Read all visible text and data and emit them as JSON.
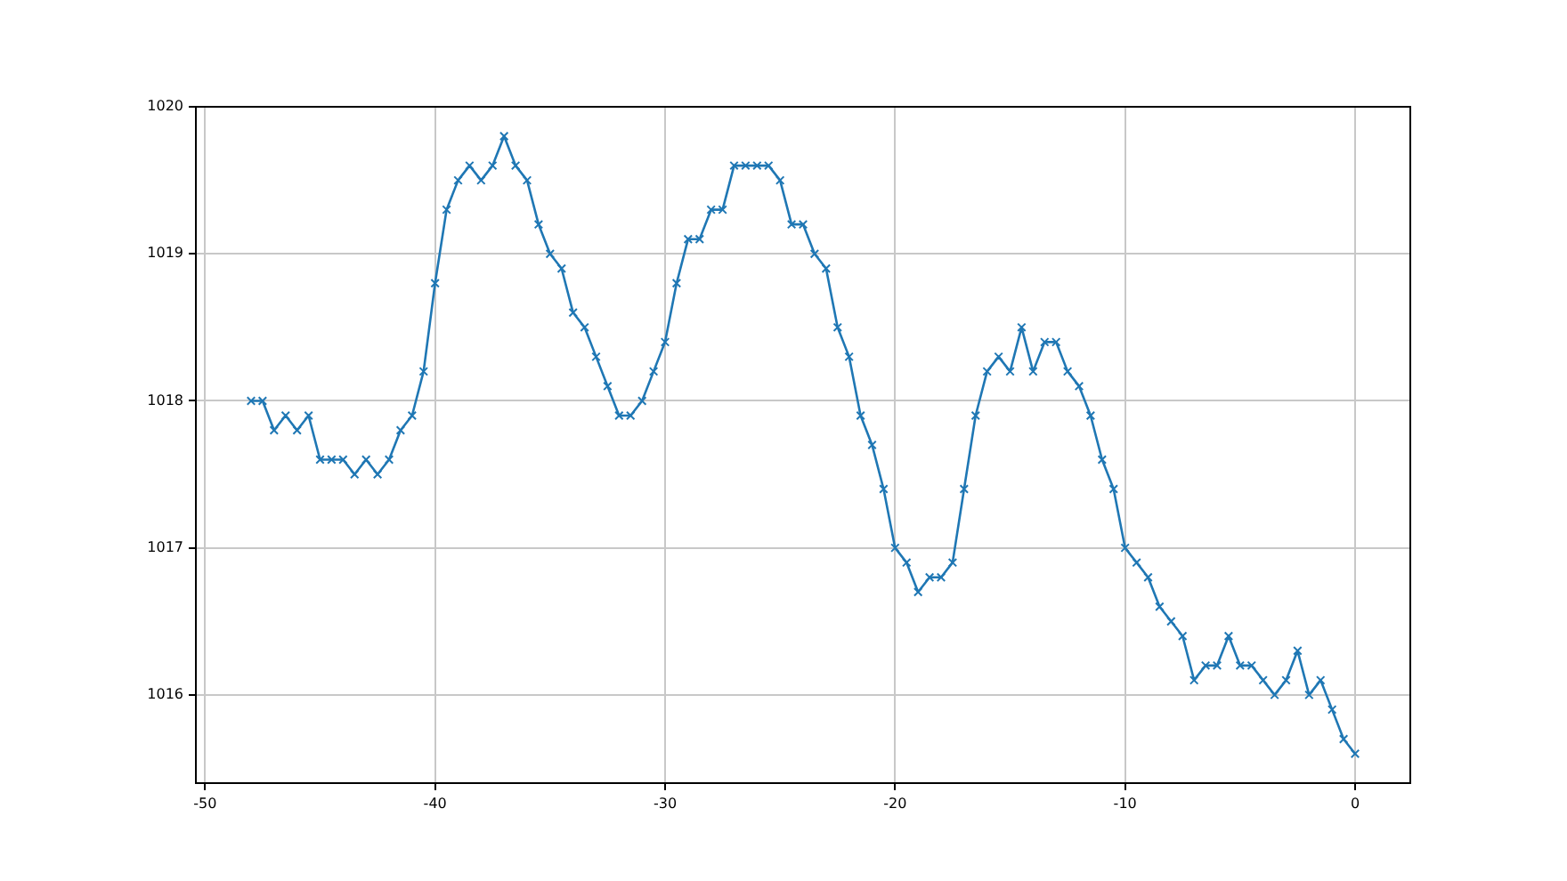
{
  "chart_data": {
    "type": "line",
    "x": [
      -48,
      -47.5,
      -47,
      -46.5,
      -46,
      -45.5,
      -45,
      -44.5,
      -44,
      -43.5,
      -43,
      -42.5,
      -42,
      -41.5,
      -41,
      -40.5,
      -40,
      -39.5,
      -39,
      -38.5,
      -38,
      -37.5,
      -37,
      -36.5,
      -36,
      -35.5,
      -35,
      -34.5,
      -34,
      -33.5,
      -33,
      -32.5,
      -32,
      -31.5,
      -31,
      -30.5,
      -30,
      -29.5,
      -29,
      -28.5,
      -28,
      -27.5,
      -27,
      -26.5,
      -26,
      -25.5,
      -25,
      -24.5,
      -24,
      -23.5,
      -23,
      -22.5,
      -22,
      -21.5,
      -21,
      -20.5,
      -20,
      -19.5,
      -19,
      -18.5,
      -18,
      -17.5,
      -17,
      -16.5,
      -16,
      -15.5,
      -15,
      -14.5,
      -14,
      -13.5,
      -13,
      -12.5,
      -12,
      -11.5,
      -11,
      -10.5,
      -10,
      -9.5,
      -9,
      -8.5,
      -8,
      -7.5,
      -7,
      -6.5,
      -6,
      -5.5,
      -5,
      -4.5,
      -4,
      -3.5,
      -3,
      -2.5,
      -2,
      -1.5,
      -1,
      -0.5,
      0
    ],
    "series": [
      {
        "color": "#1f77b4",
        "values": [
          1018.0,
          1018.0,
          1017.8,
          1017.9,
          1017.8,
          1017.9,
          1017.6,
          1017.6,
          1017.6,
          1017.5,
          1017.6,
          1017.5,
          1017.6,
          1017.8,
          1017.9,
          1018.2,
          1018.8,
          1019.3,
          1019.5,
          1019.6,
          1019.5,
          1019.6,
          1019.8,
          1019.6,
          1019.5,
          1019.2,
          1019.0,
          1018.9,
          1018.6,
          1018.5,
          1018.3,
          1018.1,
          1017.9,
          1017.9,
          1018.0,
          1018.2,
          1018.4,
          1018.8,
          1019.1,
          1019.1,
          1019.3,
          1019.3,
          1019.6,
          1019.6,
          1019.6,
          1019.6,
          1019.5,
          1019.2,
          1019.2,
          1019.0,
          1018.9,
          1018.5,
          1018.3,
          1017.9,
          1017.7,
          1017.4,
          1017.0,
          1016.9,
          1016.7,
          1016.8,
          1016.8,
          1016.9,
          1017.4,
          1017.9,
          1018.2,
          1018.3,
          1018.2,
          1018.5,
          1018.2,
          1018.4,
          1018.4,
          1018.2,
          1018.1,
          1017.9,
          1017.6,
          1017.4,
          1017.0,
          1016.9,
          1016.8,
          1016.6,
          1016.5,
          1016.4,
          1016.1,
          1016.2,
          1016.2,
          1016.4,
          1016.2,
          1016.2,
          1016.1,
          1016.0,
          1016.1,
          1016.3,
          1016.0,
          1016.1,
          1015.9,
          1015.7,
          1015.6
        ]
      }
    ],
    "xlim": [
      -50.4,
      2.4
    ],
    "ylim": [
      1015.4,
      1020
    ],
    "xticks": [
      -50,
      -40,
      -30,
      -20,
      -10,
      0
    ],
    "yticks": [
      1016,
      1017,
      1018,
      1019,
      1020
    ],
    "grid": true,
    "marker": "cross",
    "line_style": "solid"
  }
}
